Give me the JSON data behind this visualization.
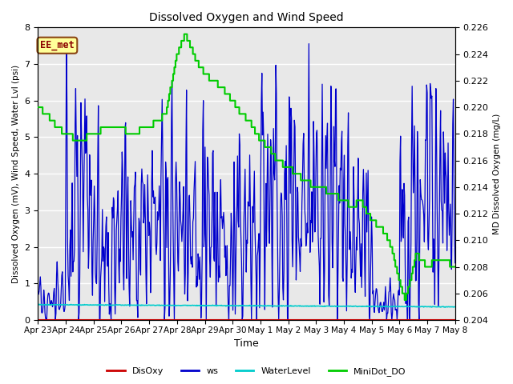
{
  "title": "Dissolved Oxygen and Wind Speed",
  "xlabel": "Time",
  "ylabel_left": "Dissolved Oxygen (mV), Wind Speed, Water Lvl (psi)",
  "ylabel_right": "MD Dissolved Oxygen (mg/L)",
  "annotation": "EE_met",
  "ylim_left": [
    0.0,
    8.0
  ],
  "ylim_right": [
    0.204,
    0.226
  ],
  "yticks_left": [
    0.0,
    1.0,
    2.0,
    3.0,
    4.0,
    5.0,
    6.0,
    7.0,
    8.0
  ],
  "yticks_right": [
    0.204,
    0.206,
    0.208,
    0.21,
    0.212,
    0.214,
    0.216,
    0.218,
    0.22,
    0.222,
    0.224,
    0.226
  ],
  "xtick_labels": [
    "Apr 23",
    "Apr 24",
    "Apr 25",
    "Apr 26",
    "Apr 27",
    "Apr 28",
    "Apr 29",
    "Apr 30",
    "May 1",
    "May 2",
    "May 3",
    "May 4",
    "May 5",
    "May 6",
    "May 7",
    "May 8"
  ],
  "bg_color": "#e8e8e8",
  "grid_color": "#ffffff",
  "colors": {
    "DisOxy": "#cc0000",
    "ws": "#0000cc",
    "WaterLevel": "#00cccc",
    "MiniDot_DO": "#00cc00"
  },
  "legend_labels": [
    "DisOxy",
    "ws",
    "WaterLevel",
    "MiniDot_DO"
  ],
  "figsize": [
    6.4,
    4.8
  ],
  "dpi": 100
}
